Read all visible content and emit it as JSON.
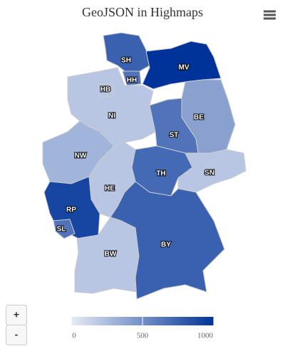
{
  "chart_data": {
    "type": "map",
    "title": "GeoJSON in Highmaps",
    "categories": [
      "SH",
      "HH",
      "MV",
      "HB",
      "NI",
      "BE",
      "ST",
      "NW",
      "TH",
      "SN",
      "HE",
      "RP",
      "SL",
      "BW",
      "BY"
    ],
    "values": [
      750,
      650,
      1000,
      200,
      200,
      400,
      650,
      300,
      700,
      200,
      200,
      900,
      650,
      200,
      750
    ],
    "colorlim": [
      0,
      1000
    ],
    "colorticks": [
      0,
      500,
      1000
    ],
    "min_color": "#e6ebf5",
    "max_color": "#003399"
  },
  "controls": {
    "zoom_in": "+",
    "zoom_out": "-"
  }
}
